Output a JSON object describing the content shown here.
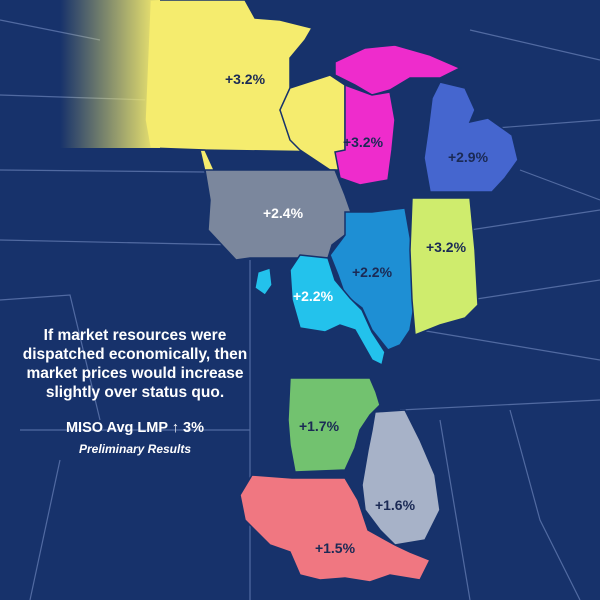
{
  "map": {
    "regions": [
      {
        "id": "minnesota",
        "label": "+3.2%",
        "color": "#f5ec6e"
      },
      {
        "id": "wisconsin",
        "label": "+3.2%",
        "color": "#f5ec6e"
      },
      {
        "id": "michigan-up",
        "label": "",
        "color": "#ee2ccc"
      },
      {
        "id": "wisconsin-east",
        "label": "+3.2%",
        "color": "#ee2ccc"
      },
      {
        "id": "michigan-lp",
        "label": "+2.9%",
        "color": "#4566cf"
      },
      {
        "id": "iowa",
        "label": "+2.4%",
        "color": "#7b879d"
      },
      {
        "id": "illinois",
        "label": "+2.2%",
        "color": "#1e8fd4"
      },
      {
        "id": "indiana",
        "label": "+3.2%",
        "color": "#cfec6d"
      },
      {
        "id": "missouri",
        "label": "+2.2%",
        "color": "#23c2ec"
      },
      {
        "id": "arkansas",
        "label": "+1.7%",
        "color": "#72c26f"
      },
      {
        "id": "mississippi",
        "label": "+1.6%",
        "color": "#a7b2c8"
      },
      {
        "id": "louisiana",
        "label": "+1.5%",
        "color": "#f07781"
      }
    ]
  },
  "note": {
    "text": "If market resources were dispatched economically, then market prices would increase slightly over status quo.",
    "avg": "MISO Avg LMP ↑ 3%",
    "prelim": "Preliminary Results"
  }
}
